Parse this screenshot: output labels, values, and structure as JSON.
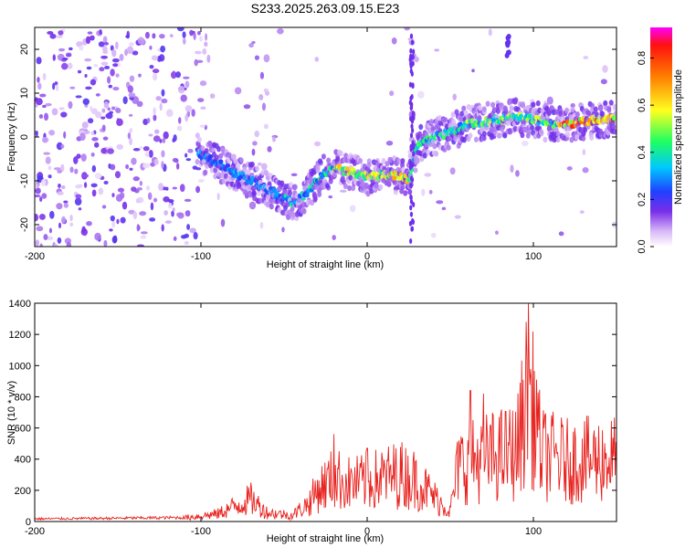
{
  "title": "S233.2025.263.09.15.E23",
  "chart_data": [
    {
      "type": "heatmap",
      "xlabel": "Height of straight line (km)",
      "ylabel": "Frequency (Hz)",
      "xlim": [
        -200,
        150
      ],
      "ylim": [
        -25,
        25
      ],
      "xticks": [
        -200,
        -100,
        0,
        100
      ],
      "xtick_labels": [
        "-200",
        "-100",
        "0",
        "100"
      ],
      "yticks": [
        -20,
        -10,
        0,
        10,
        20
      ],
      "ytick_labels": [
        "-20",
        "-10",
        "0",
        "10",
        "20"
      ],
      "colorbar": {
        "label": "Normalized spectral amplitude",
        "range": [
          0,
          0.93
        ],
        "ticks": [
          0.0,
          0.2,
          0.4,
          0.6,
          0.8
        ],
        "tick_labels": [
          "0.0",
          "0.2",
          "0.4",
          "0.6",
          "0.8"
        ]
      },
      "ridge": [
        {
          "x": -100,
          "y": -4
        },
        {
          "x": -90,
          "y": -6
        },
        {
          "x": -80,
          "y": -8
        },
        {
          "x": -70,
          "y": -10
        },
        {
          "x": -60,
          "y": -12
        },
        {
          "x": -50,
          "y": -14
        },
        {
          "x": -45,
          "y": -15
        },
        {
          "x": -40,
          "y": -14
        },
        {
          "x": -35,
          "y": -12
        },
        {
          "x": -30,
          "y": -10
        },
        {
          "x": -25,
          "y": -8
        },
        {
          "x": -20,
          "y": -7
        },
        {
          "x": -10,
          "y": -8
        },
        {
          "x": 0,
          "y": -9
        },
        {
          "x": 10,
          "y": -8.5
        },
        {
          "x": 20,
          "y": -9
        },
        {
          "x": 25,
          "y": -10
        },
        {
          "x": 30,
          "y": -2
        },
        {
          "x": 40,
          "y": 0
        },
        {
          "x": 50,
          "y": 1
        },
        {
          "x": 60,
          "y": 3
        },
        {
          "x": 70,
          "y": 3.5
        },
        {
          "x": 80,
          "y": 4
        },
        {
          "x": 90,
          "y": 4.5
        },
        {
          "x": 100,
          "y": 4
        },
        {
          "x": 110,
          "y": 3
        },
        {
          "x": 120,
          "y": 3
        },
        {
          "x": 130,
          "y": 3.5
        },
        {
          "x": 140,
          "y": 4
        },
        {
          "x": 150,
          "y": 4
        }
      ],
      "ridge_peak": {
        "x": 0,
        "y": -9,
        "value": 0.93
      }
    },
    {
      "type": "line",
      "xlabel": "Height of straight line (km)",
      "ylabel": "SNR (10 * v/v)",
      "xlim": [
        -200,
        150
      ],
      "ylim": [
        0,
        1400
      ],
      "xticks": [
        -200,
        -100,
        0,
        100
      ],
      "xtick_labels": [
        "-200",
        "-100",
        "0",
        "100"
      ],
      "yticks": [
        0,
        200,
        400,
        600,
        800,
        1000,
        1200,
        1400
      ],
      "ytick_labels": [
        "0",
        "200",
        "400",
        "600",
        "800",
        "1000",
        "1200",
        "1400"
      ],
      "color": "#e8221e",
      "envelope": [
        {
          "x": -200,
          "y": 20
        },
        {
          "x": -150,
          "y": 25
        },
        {
          "x": -110,
          "y": 30
        },
        {
          "x": -90,
          "y": 60
        },
        {
          "x": -80,
          "y": 120
        },
        {
          "x": -70,
          "y": 180
        },
        {
          "x": -60,
          "y": 70
        },
        {
          "x": -45,
          "y": 50
        },
        {
          "x": -35,
          "y": 150
        },
        {
          "x": -30,
          "y": 250
        },
        {
          "x": -20,
          "y": 350
        },
        {
          "x": -10,
          "y": 300
        },
        {
          "x": 0,
          "y": 320
        },
        {
          "x": 10,
          "y": 350
        },
        {
          "x": 20,
          "y": 380
        },
        {
          "x": 30,
          "y": 330
        },
        {
          "x": 40,
          "y": 200
        },
        {
          "x": 50,
          "y": 80
        },
        {
          "x": 55,
          "y": 400
        },
        {
          "x": 70,
          "y": 450
        },
        {
          "x": 90,
          "y": 500
        },
        {
          "x": 97,
          "y": 950
        },
        {
          "x": 105,
          "y": 480
        },
        {
          "x": 120,
          "y": 430
        },
        {
          "x": 150,
          "y": 450
        }
      ],
      "peaks": [
        {
          "x": -20,
          "y": 560
        },
        {
          "x": 0,
          "y": 470
        },
        {
          "x": 62,
          "y": 840
        },
        {
          "x": 70,
          "y": 820
        },
        {
          "x": 97,
          "y": 1400
        },
        {
          "x": 102,
          "y": 910
        }
      ]
    }
  ]
}
